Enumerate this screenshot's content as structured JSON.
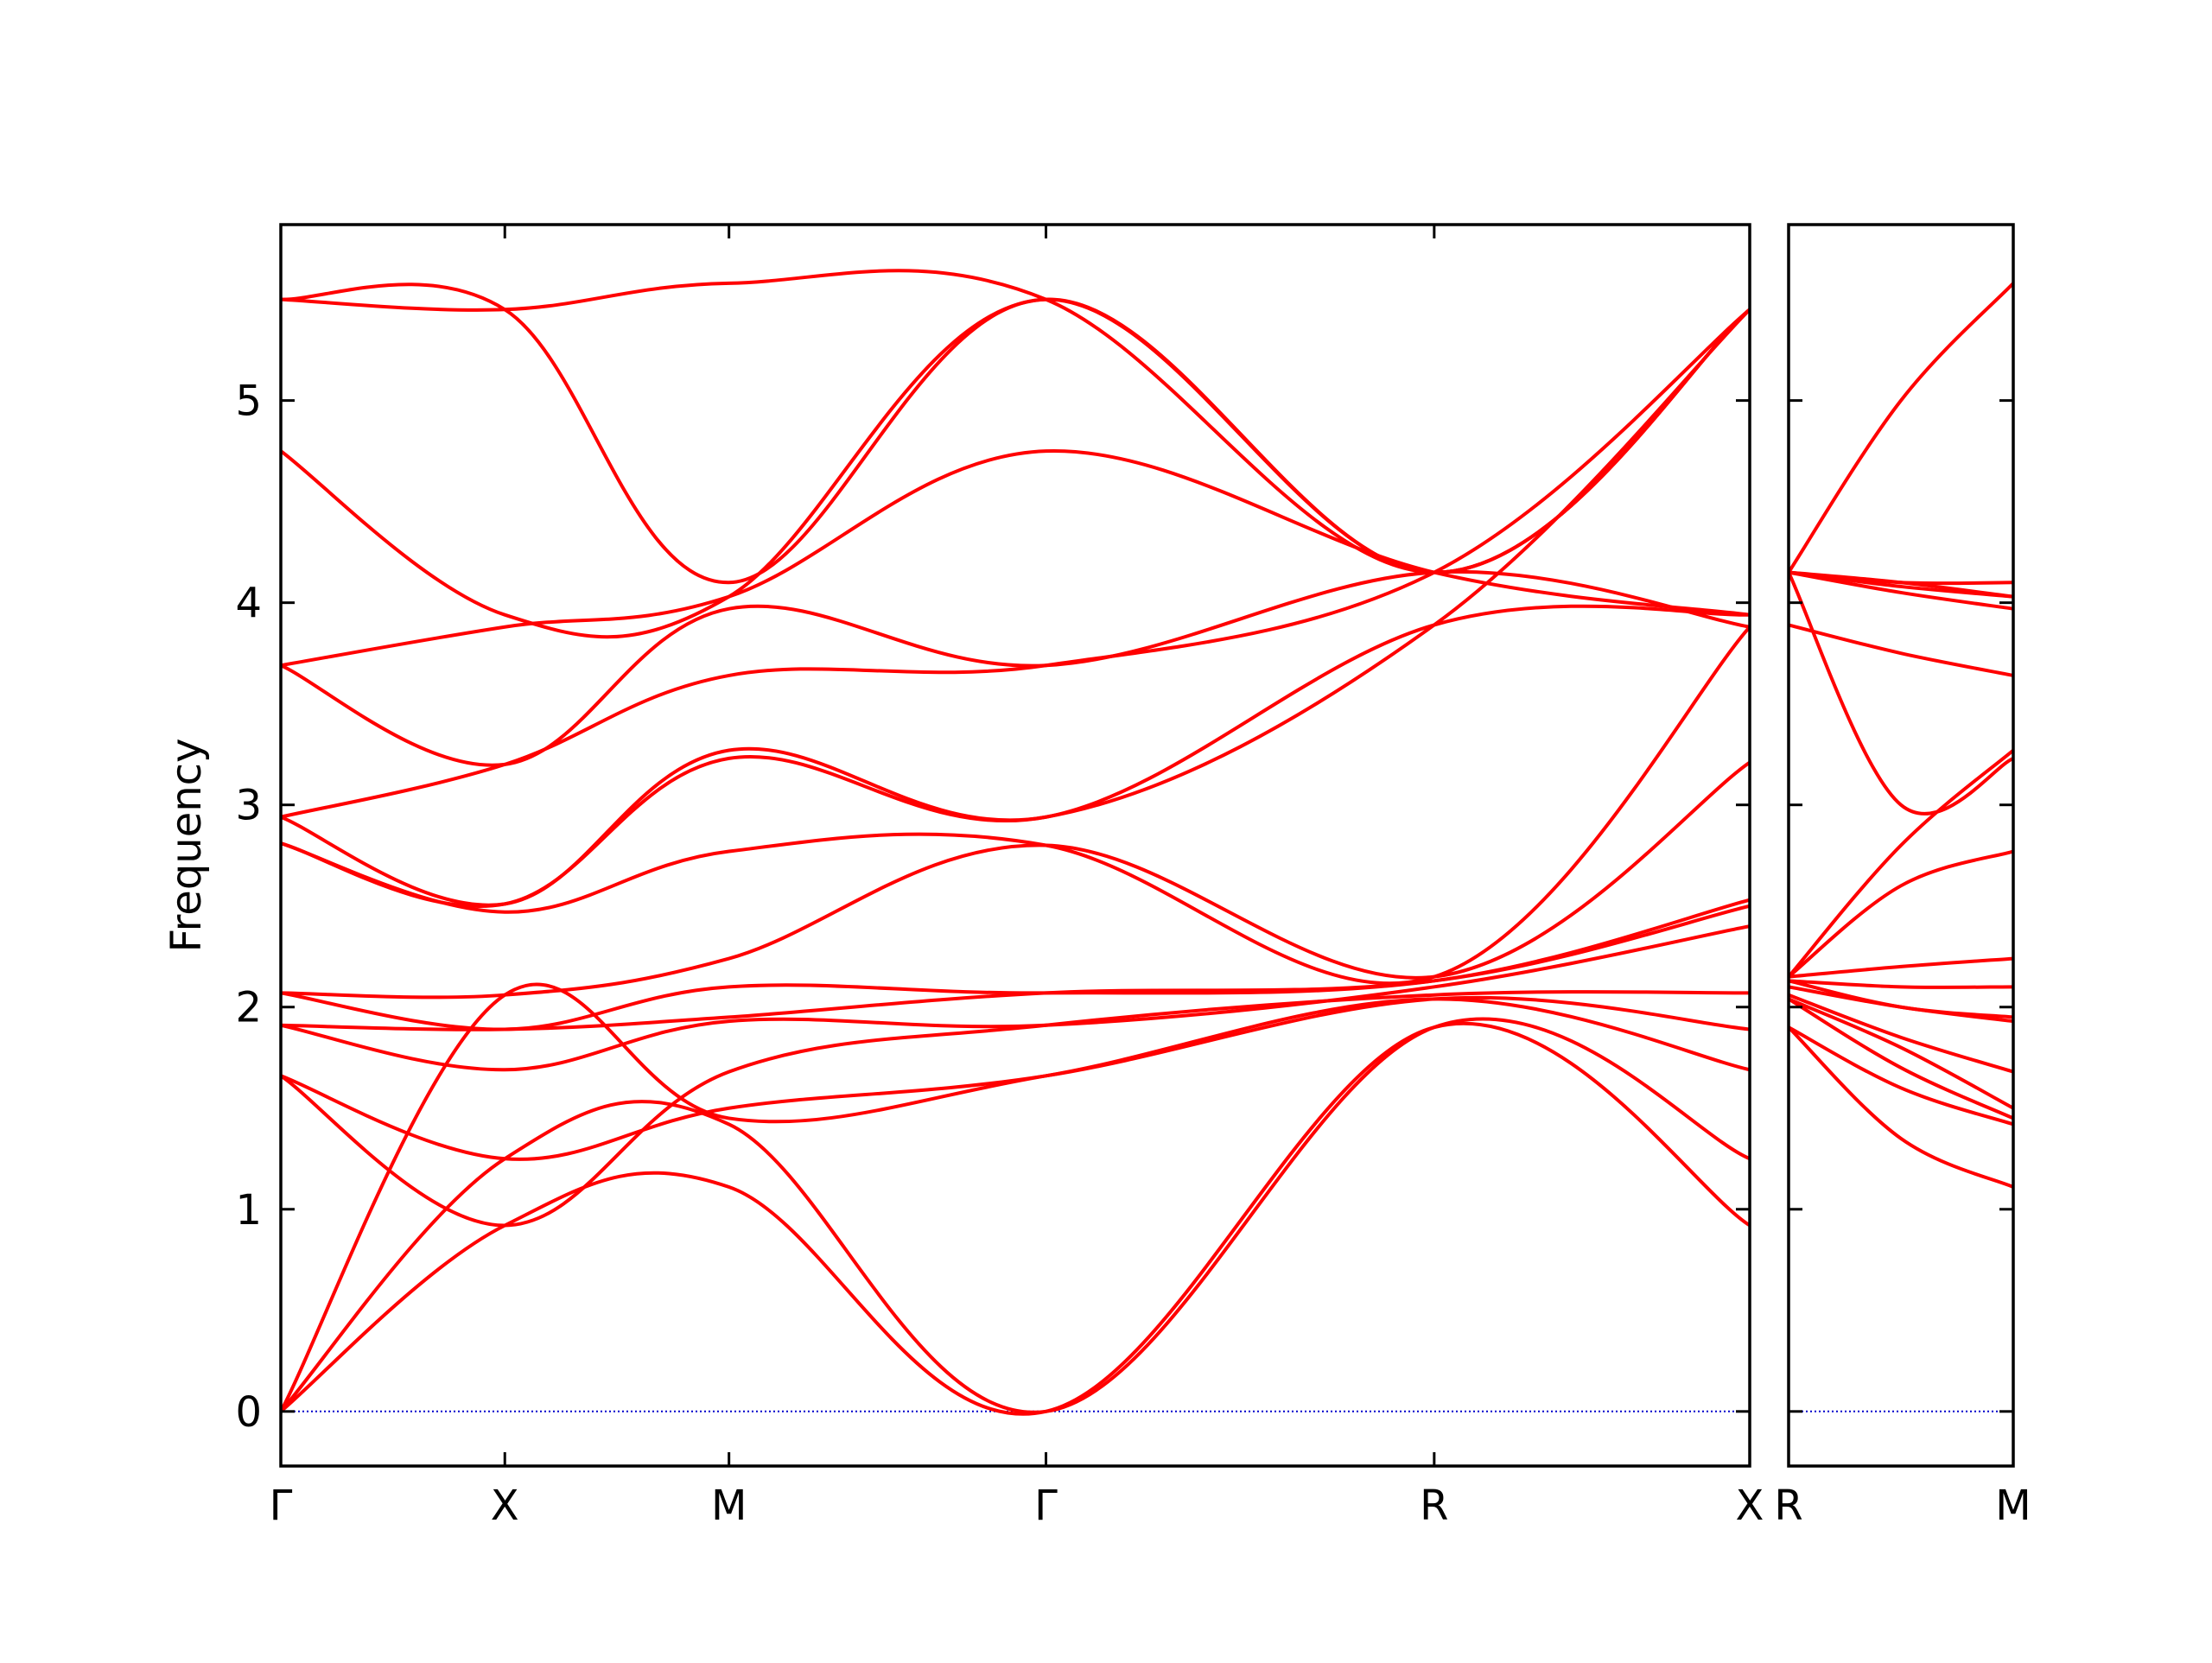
{
  "chart_data": [
    {
      "type": "line",
      "panel": "left",
      "title": "",
      "ylabel": "Frequency",
      "xlabel": "",
      "ylim": [
        -0.27,
        5.87
      ],
      "xlim": [
        0,
        1
      ],
      "yticks": [
        0,
        1,
        2,
        3,
        4,
        5
      ],
      "ytick_labels": [
        "0",
        "1",
        "2",
        "3",
        "4",
        "5"
      ],
      "xticks": [
        {
          "position": 0.0,
          "label": "Γ"
        },
        {
          "position": 0.1525,
          "label": "X"
        },
        {
          "position": 0.3051,
          "label": "M"
        },
        {
          "position": 0.5209,
          "label": "Γ"
        },
        {
          "position": 0.7852,
          "label": "R"
        },
        {
          "position": 1.0,
          "label": "X"
        }
      ],
      "grid": false,
      "line_color": "#ff0000",
      "zero_line_color": "#0000cc",
      "series": [
        {
          "x": [
            0,
            0.1525,
            0.3051,
            0.5209,
            0.7852,
            1.0
          ],
          "y": [
            0,
            0.92,
            1.11,
            0.0,
            1.9,
            0.92
          ]
        },
        {
          "x": [
            0,
            0.1525,
            0.3051,
            0.5209,
            0.7852,
            1.0
          ],
          "y": [
            0,
            1.25,
            1.42,
            0.0,
            1.9,
            1.25
          ]
        },
        {
          "x": [
            0,
            0.1525,
            0.3051,
            0.5209,
            0.7852,
            1.0
          ],
          "y": [
            0,
            2.06,
            1.45,
            1.66,
            2.04,
            1.69
          ]
        },
        {
          "x": [
            0,
            0.1525,
            0.3051,
            0.5209,
            0.7852,
            1.0
          ],
          "y": [
            1.66,
            1.25,
            1.5,
            1.66,
            2.04,
            1.89
          ]
        },
        {
          "x": [
            0,
            0.1525,
            0.3051,
            0.5209,
            0.7852,
            1.0
          ],
          "y": [
            1.66,
            0.92,
            1.68,
            1.91,
            2.06,
            2.07
          ]
        },
        {
          "x": [
            0,
            0.1525,
            0.3051,
            0.5209,
            0.7852,
            1.0
          ],
          "y": [
            1.91,
            1.69,
            1.93,
            1.91,
            2.1,
            2.4
          ]
        },
        {
          "x": [
            0,
            0.1525,
            0.3051,
            0.5209,
            0.7852,
            1.0
          ],
          "y": [
            1.91,
            1.89,
            1.95,
            2.07,
            2.13,
            2.5
          ]
        },
        {
          "x": [
            0,
            0.1525,
            0.3051,
            0.5209,
            0.7852,
            1.0
          ],
          "y": [
            2.07,
            1.89,
            2.1,
            2.07,
            2.13,
            2.53
          ]
        },
        {
          "x": [
            0,
            0.1525,
            0.3051,
            0.5209,
            0.7852,
            1.0
          ],
          "y": [
            2.07,
            2.06,
            2.24,
            2.8,
            2.15,
            3.21
          ]
        },
        {
          "x": [
            0,
            0.1525,
            0.3051,
            0.5209,
            0.7852,
            1.0
          ],
          "y": [
            2.81,
            2.47,
            2.77,
            2.8,
            2.15,
            3.88
          ]
        },
        {
          "x": [
            0,
            0.1525,
            0.3051,
            0.5209,
            0.7852,
            1.0
          ],
          "y": [
            2.81,
            2.51,
            3.23,
            2.94,
            3.89,
            3.94
          ]
        },
        {
          "x": [
            0,
            0.1525,
            0.3051,
            0.5209,
            0.7852,
            1.0
          ],
          "y": [
            2.94,
            2.51,
            3.27,
            2.94,
            3.89,
            5.45
          ]
        },
        {
          "x": [
            0,
            0.1525,
            0.3051,
            0.5209,
            0.7852,
            1.0
          ],
          "y": [
            2.94,
            3.2,
            3.64,
            3.69,
            4.15,
            5.45
          ]
        },
        {
          "x": [
            0,
            0.1525,
            0.3051,
            0.5209,
            0.7852,
            1.0
          ],
          "y": [
            3.69,
            3.2,
            3.97,
            3.69,
            4.15,
            3.88
          ]
        },
        {
          "x": [
            0,
            0.1525,
            0.3051,
            0.5209,
            0.7852,
            1.0
          ],
          "y": [
            3.69,
            3.88,
            4.03,
            4.75,
            4.15,
            3.94
          ]
        },
        {
          "x": [
            0,
            0.1525,
            0.3051,
            0.5209,
            0.7852,
            1.0
          ],
          "y": [
            4.75,
            3.94,
            4.03,
            5.5,
            4.15,
            5.45
          ]
        },
        {
          "x": [
            0,
            0.1525,
            0.3051,
            0.5209,
            0.7852,
            1.0
          ],
          "y": [
            5.5,
            5.45,
            4.1,
            5.5,
            4.15,
            5.45
          ]
        },
        {
          "x": [
            0,
            0.1525,
            0.3051,
            0.5209,
            0.7852,
            1.0
          ],
          "y": [
            5.5,
            5.45,
            5.58,
            5.5,
            4.15,
            5.45
          ]
        }
      ]
    },
    {
      "type": "line",
      "panel": "right",
      "ylim": [
        -0.27,
        5.87
      ],
      "xlim": [
        0,
        1
      ],
      "yticks": [
        0,
        1,
        2,
        3,
        4,
        5
      ],
      "xticks": [
        {
          "position": 0.0,
          "label": "R"
        },
        {
          "position": 1.0,
          "label": "M"
        }
      ],
      "grid": false,
      "line_color": "#ff0000",
      "zero_line_color": "#0000cc",
      "series": [
        {
          "x": [
            0,
            0.5,
            1.0
          ],
          "y": [
            1.9,
            1.35,
            1.11
          ]
        },
        {
          "x": [
            0,
            0.5,
            1.0
          ],
          "y": [
            1.9,
            1.6,
            1.42
          ]
        },
        {
          "x": [
            0,
            0.5,
            1.0
          ],
          "y": [
            2.04,
            1.7,
            1.45
          ]
        },
        {
          "x": [
            0,
            0.5,
            1.0
          ],
          "y": [
            2.04,
            1.8,
            1.5
          ]
        },
        {
          "x": [
            0,
            0.5,
            1.0
          ],
          "y": [
            2.06,
            1.85,
            1.68
          ]
        },
        {
          "x": [
            0,
            0.5,
            1.0
          ],
          "y": [
            2.1,
            2.0,
            1.93
          ]
        },
        {
          "x": [
            0,
            0.5,
            1.0
          ],
          "y": [
            2.13,
            2.0,
            1.95
          ]
        },
        {
          "x": [
            0,
            0.5,
            1.0
          ],
          "y": [
            2.13,
            2.1,
            2.1
          ]
        },
        {
          "x": [
            0,
            0.5,
            1.0
          ],
          "y": [
            2.15,
            2.2,
            2.24
          ]
        },
        {
          "x": [
            0,
            0.5,
            1.0
          ],
          "y": [
            2.15,
            2.6,
            2.77
          ]
        },
        {
          "x": [
            0,
            0.5,
            1.0
          ],
          "y": [
            3.89,
            3.75,
            3.64
          ]
        },
        {
          "x": [
            0,
            0.5,
            1.0
          ],
          "y": [
            4.15,
            4.1,
            4.03
          ]
        },
        {
          "x": [
            0,
            0.5,
            1.0
          ],
          "y": [
            4.15,
            4.08,
            4.03
          ]
        },
        {
          "x": [
            0,
            0.5,
            1.0
          ],
          "y": [
            4.15,
            3.0,
            3.23
          ]
        },
        {
          "x": [
            0,
            0.5,
            1.0
          ],
          "y": [
            2.15,
            2.8,
            3.27
          ]
        },
        {
          "x": [
            0,
            0.5,
            1.0
          ],
          "y": [
            4.15,
            4.1,
            4.1
          ]
        },
        {
          "x": [
            0,
            0.5,
            1.0
          ],
          "y": [
            4.15,
            5.0,
            5.58
          ]
        },
        {
          "x": [
            0,
            0.5,
            1.0
          ],
          "y": [
            4.15,
            4.05,
            3.97
          ]
        }
      ]
    }
  ]
}
